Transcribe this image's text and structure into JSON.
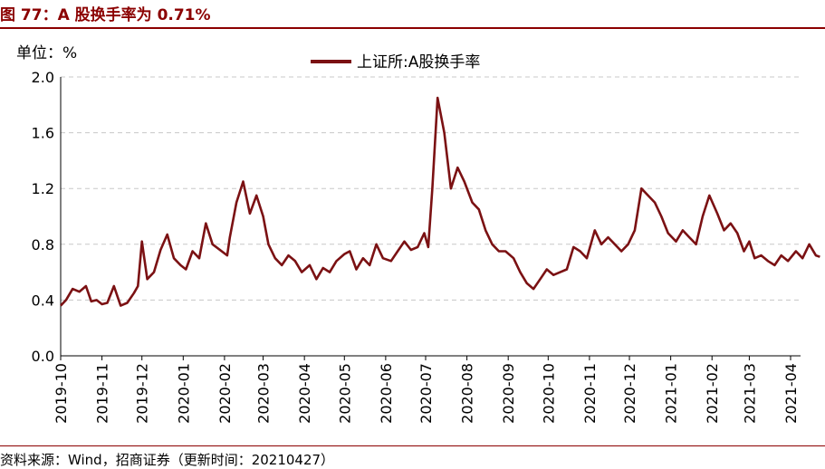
{
  "figure": {
    "title": "图 77：A 股换手率为 0.71%",
    "unit_label": "单位：%",
    "source": "资料来源：Wind，招商证券（更新时间：20210427）"
  },
  "colors": {
    "brand": "#8b0000",
    "series": "#7b1113",
    "grid": "#c8c8c8"
  },
  "chart_data": {
    "type": "line",
    "legend": "top-center",
    "grid": true,
    "ylim": [
      0,
      2.0
    ],
    "yticks": [
      "0.0",
      "0.4",
      "0.8",
      "1.2",
      "1.6",
      "2.0"
    ],
    "xticks": [
      "2019-10",
      "2019-11",
      "2019-12",
      "2020-01",
      "2020-02",
      "2020-03",
      "2020-04",
      "2020-05",
      "2020-06",
      "2020-07",
      "2020-08",
      "2020-09",
      "2020-10",
      "2020-11",
      "2020-12",
      "2021-01",
      "2021-02",
      "2021-03",
      "2021-04"
    ],
    "series": [
      {
        "name": "上证所:A股换手率",
        "x": [
          "2019-10-01",
          "2019-10-05",
          "2019-10-10",
          "2019-10-15",
          "2019-10-20",
          "2019-10-24",
          "2019-10-28",
          "2019-11-01",
          "2019-11-05",
          "2019-11-10",
          "2019-11-15",
          "2019-11-20",
          "2019-11-25",
          "2019-11-28",
          "2019-12-01",
          "2019-12-05",
          "2019-12-10",
          "2019-12-15",
          "2019-12-20",
          "2019-12-25",
          "2019-12-30",
          "2020-01-03",
          "2020-01-08",
          "2020-01-13",
          "2020-01-18",
          "2020-01-23",
          "2020-02-03",
          "2020-02-05",
          "2020-02-10",
          "2020-02-15",
          "2020-02-20",
          "2020-02-25",
          "2020-03-01",
          "2020-03-05",
          "2020-03-10",
          "2020-03-15",
          "2020-03-20",
          "2020-03-25",
          "2020-03-30",
          "2020-04-05",
          "2020-04-10",
          "2020-04-15",
          "2020-04-20",
          "2020-04-25",
          "2020-05-01",
          "2020-05-05",
          "2020-05-10",
          "2020-05-15",
          "2020-05-20",
          "2020-05-25",
          "2020-05-30",
          "2020-06-05",
          "2020-06-10",
          "2020-06-15",
          "2020-06-20",
          "2020-06-25",
          "2020-06-30",
          "2020-07-03",
          "2020-07-06",
          "2020-07-10",
          "2020-07-15",
          "2020-07-20",
          "2020-07-25",
          "2020-07-30",
          "2020-08-05",
          "2020-08-10",
          "2020-08-15",
          "2020-08-20",
          "2020-08-25",
          "2020-08-30",
          "2020-09-05",
          "2020-09-10",
          "2020-09-15",
          "2020-09-20",
          "2020-09-25",
          "2020-09-30",
          "2020-10-05",
          "2020-10-10",
          "2020-10-15",
          "2020-10-20",
          "2020-10-25",
          "2020-10-30",
          "2020-11-05",
          "2020-11-10",
          "2020-11-15",
          "2020-11-20",
          "2020-11-25",
          "2020-11-30",
          "2020-12-05",
          "2020-12-10",
          "2020-12-15",
          "2020-12-20",
          "2020-12-25",
          "2020-12-30",
          "2021-01-05",
          "2021-01-10",
          "2021-01-15",
          "2021-01-20",
          "2021-01-25",
          "2021-01-30",
          "2021-02-05",
          "2021-02-10",
          "2021-02-15",
          "2021-02-20",
          "2021-02-25",
          "2021-03-01",
          "2021-03-05",
          "2021-03-10",
          "2021-03-15",
          "2021-03-20",
          "2021-03-25",
          "2021-03-30",
          "2021-04-05",
          "2021-04-10",
          "2021-04-15",
          "2021-04-20",
          "2021-04-23"
        ],
        "values": [
          0.36,
          0.4,
          0.48,
          0.46,
          0.5,
          0.39,
          0.4,
          0.37,
          0.38,
          0.5,
          0.36,
          0.38,
          0.45,
          0.5,
          0.82,
          0.55,
          0.6,
          0.76,
          0.87,
          0.7,
          0.65,
          0.62,
          0.75,
          0.7,
          0.95,
          0.8,
          0.72,
          0.85,
          1.1,
          1.25,
          1.02,
          1.15,
          1.0,
          0.8,
          0.7,
          0.65,
          0.72,
          0.68,
          0.6,
          0.65,
          0.55,
          0.63,
          0.6,
          0.68,
          0.73,
          0.75,
          0.62,
          0.7,
          0.65,
          0.8,
          0.7,
          0.68,
          0.75,
          0.82,
          0.76,
          0.78,
          0.88,
          0.78,
          1.2,
          1.85,
          1.6,
          1.2,
          1.35,
          1.25,
          1.1,
          1.05,
          0.9,
          0.8,
          0.75,
          0.75,
          0.7,
          0.6,
          0.52,
          0.48,
          0.55,
          0.62,
          0.58,
          0.6,
          0.62,
          0.78,
          0.75,
          0.7,
          0.9,
          0.8,
          0.85,
          0.8,
          0.75,
          0.8,
          0.9,
          1.2,
          1.15,
          1.1,
          1.0,
          0.88,
          0.82,
          0.9,
          0.85,
          0.8,
          1.0,
          1.15,
          1.02,
          0.9,
          0.95,
          0.88,
          0.75,
          0.82,
          0.7,
          0.72,
          0.68,
          0.65,
          0.72,
          0.68,
          0.75,
          0.7,
          0.8,
          0.72,
          0.71
        ]
      }
    ]
  }
}
